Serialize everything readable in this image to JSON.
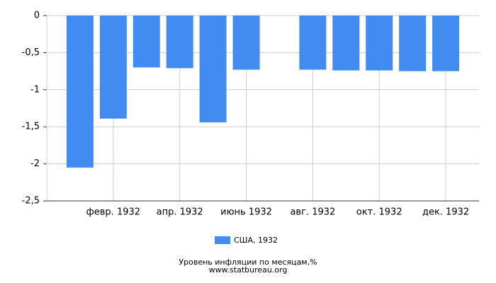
{
  "chart_data": {
    "type": "bar",
    "title": "Уровень инфляции по месяцам,%",
    "subtitle": "www.statbureau.org",
    "categories": [
      null,
      "февр. 1932",
      null,
      "апр. 1932",
      null,
      "июнь 1932",
      null,
      "авг. 1932",
      null,
      "окт. 1932",
      null,
      "дек. 1932"
    ],
    "series": [
      {
        "name": "США, 1932",
        "color": "#428bf0",
        "values": [
          -2.05,
          -1.39,
          -0.7,
          -0.71,
          -1.44,
          -0.73,
          null,
          -0.73,
          -0.74,
          -0.74,
          -0.75,
          -0.75
        ]
      }
    ],
    "ylim": [
      -2.5,
      0
    ],
    "yticks": [
      0,
      {
        "value": -0.5,
        "label": "-0,5"
      },
      -1,
      {
        "value": -1.5,
        "label": "-1,5"
      },
      -2,
      {
        "value": -2.5,
        "label": "-2,5"
      }
    ],
    "grid": true,
    "legend": "bottom"
  }
}
